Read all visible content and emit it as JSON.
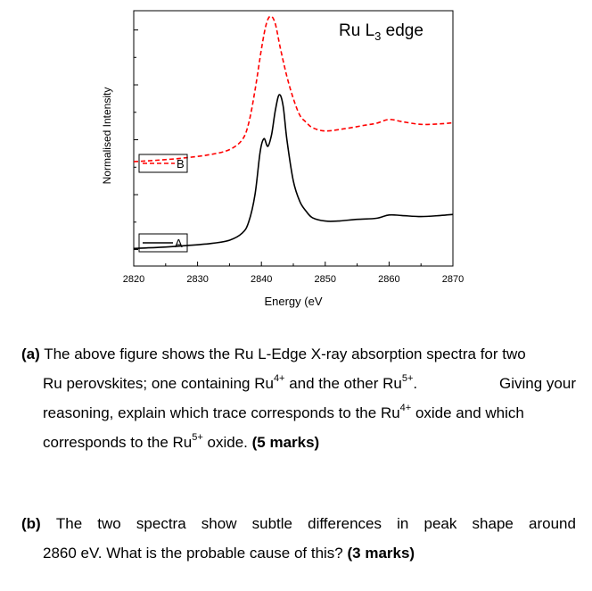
{
  "chart_data": {
    "type": "line",
    "title_main": "Ru L",
    "title_sub": "3",
    "title_rest": " edge",
    "xlabel": "Energy (eV",
    "ylabel": "Normalised Intensity",
    "xlim": [
      2820,
      2870
    ],
    "x_ticks": [
      "2820",
      "2830",
      "2840",
      "2850",
      "2860",
      "2870"
    ],
    "legend": [
      {
        "name": "B",
        "style": "dashed",
        "color": "#ff0000"
      },
      {
        "name": "A",
        "style": "solid",
        "color": "#000000"
      }
    ],
    "series": [
      {
        "name": "A",
        "style": "solid",
        "color": "#000000",
        "points": [
          [
            2820,
            0.02
          ],
          [
            2824,
            0.04
          ],
          [
            2828,
            0.07
          ],
          [
            2832,
            0.11
          ],
          [
            2835,
            0.17
          ],
          [
            2837,
            0.3
          ],
          [
            2838,
            0.5
          ],
          [
            2839,
            1.0
          ],
          [
            2839.8,
            1.78
          ],
          [
            2840.4,
            2.02
          ],
          [
            2841,
            1.88
          ],
          [
            2841.6,
            2.1
          ],
          [
            2842.2,
            2.55
          ],
          [
            2842.8,
            2.82
          ],
          [
            2843.4,
            2.62
          ],
          [
            2844,
            2.0
          ],
          [
            2845,
            1.25
          ],
          [
            2846,
            0.88
          ],
          [
            2847,
            0.7
          ],
          [
            2848,
            0.58
          ],
          [
            2850,
            0.52
          ],
          [
            2852,
            0.52
          ],
          [
            2855,
            0.55
          ],
          [
            2858,
            0.57
          ],
          [
            2860,
            0.63
          ],
          [
            2862,
            0.62
          ],
          [
            2865,
            0.6
          ],
          [
            2868,
            0.62
          ],
          [
            2870,
            0.64
          ]
        ]
      },
      {
        "name": "B",
        "style": "dashed",
        "color": "#ff0000",
        "points": [
          [
            2820,
            1.6
          ],
          [
            2824,
            1.63
          ],
          [
            2828,
            1.67
          ],
          [
            2832,
            1.73
          ],
          [
            2835,
            1.82
          ],
          [
            2837,
            2.0
          ],
          [
            2838,
            2.3
          ],
          [
            2839,
            2.9
          ],
          [
            2840,
            3.65
          ],
          [
            2840.8,
            4.12
          ],
          [
            2841.5,
            4.25
          ],
          [
            2842.2,
            4.1
          ],
          [
            2843,
            3.65
          ],
          [
            2844,
            3.15
          ],
          [
            2845,
            2.75
          ],
          [
            2846,
            2.45
          ],
          [
            2847,
            2.32
          ],
          [
            2848,
            2.22
          ],
          [
            2850,
            2.16
          ],
          [
            2853,
            2.2
          ],
          [
            2856,
            2.26
          ],
          [
            2858,
            2.3
          ],
          [
            2860,
            2.37
          ],
          [
            2862,
            2.33
          ],
          [
            2865,
            2.28
          ],
          [
            2868,
            2.29
          ],
          [
            2870,
            2.31
          ]
        ]
      }
    ],
    "ylim": [
      -0.3,
      4.35
    ],
    "grid": false
  },
  "questions": {
    "a": {
      "lead": "(a)",
      "l1": "The above figure shows the Ru L-Edge X-ray absorption spectra for two",
      "l2_p1": "Ru perovskites; one containing Ru",
      "l2_sup1": "4+",
      "l2_p2": " and the other Ru",
      "l2_sup2": "5+",
      "l2_p3": ".",
      "l2_p4": "Giving your",
      "l3": "reasoning, explain which trace corresponds to the Ru",
      "l3_sup": "4+",
      "l3_p2": " oxide and which",
      "l4_p1": "corresponds to the Ru",
      "l4_sup": "5+",
      "l4_p2": " oxide. ",
      "marks": "(5 marks)"
    },
    "b": {
      "lead": "(b)",
      "l1_words": [
        "The",
        "two",
        "spectra",
        "show",
        "subtle",
        "differences",
        "in",
        "peak",
        "shape",
        "around"
      ],
      "l2": "2860 eV.  What is the probable cause of this? ",
      "marks": "(3 marks)"
    }
  }
}
